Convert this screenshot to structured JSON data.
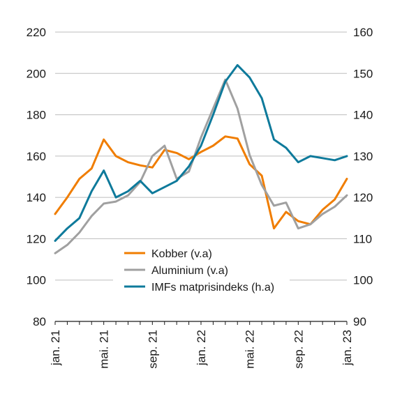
{
  "chart_data": {
    "type": "line",
    "title": "",
    "xlabel": "",
    "ylabel": "",
    "x_tick_labels": [
      "jan. 21",
      "mai. 21",
      "sep. 21",
      "jan. 22",
      "mai. 22",
      "sep. 22",
      "jan. 23"
    ],
    "left_axis": {
      "ylim": [
        80,
        220
      ],
      "ticks": [
        80,
        100,
        120,
        140,
        160,
        180,
        200,
        220
      ]
    },
    "right_axis": {
      "ylim": [
        90,
        160
      ],
      "ticks": [
        90,
        100,
        110,
        120,
        130,
        140,
        150,
        160
      ]
    },
    "grid": "horizontal",
    "legend_position": "bottom-center",
    "x": [
      "2021-01",
      "2021-02",
      "2021-03",
      "2021-04",
      "2021-05",
      "2021-06",
      "2021-07",
      "2021-08",
      "2021-09",
      "2021-10",
      "2021-11",
      "2021-12",
      "2022-01",
      "2022-02",
      "2022-03",
      "2022-04",
      "2022-05",
      "2022-06",
      "2022-07",
      "2022-08",
      "2022-09",
      "2022-10",
      "2022-11",
      "2022-12",
      "2023-01"
    ],
    "series": [
      {
        "name": "Kobber (v.a)",
        "axis": "left",
        "color": "#f07d00",
        "values": [
          132,
          140,
          149,
          154,
          168,
          160,
          157,
          155.5,
          154.5,
          163,
          161.5,
          158.5,
          162,
          165,
          169.5,
          168.5,
          156,
          150.5,
          125,
          133,
          128.5,
          127,
          134,
          139,
          149
        ]
      },
      {
        "name": "Aluminium (v.a)",
        "axis": "left",
        "color": "#a0a0a0",
        "values": [
          113,
          117,
          123,
          131,
          137,
          138,
          141,
          147.5,
          160,
          165,
          149,
          152.5,
          169,
          183,
          197,
          183,
          160.5,
          146,
          136,
          137.5,
          125,
          127,
          132,
          135.5,
          141
        ]
      },
      {
        "name": "IMFs matprisindeks (h.a)",
        "axis": "right",
        "color": "#0e7a9b",
        "values": [
          109.5,
          112.5,
          115,
          121.5,
          126.5,
          120,
          121.5,
          124,
          121,
          122.5,
          124,
          127.5,
          132.5,
          140,
          148,
          152,
          149,
          144,
          134,
          132,
          128.5,
          130,
          129.5,
          129,
          130
        ]
      }
    ]
  }
}
